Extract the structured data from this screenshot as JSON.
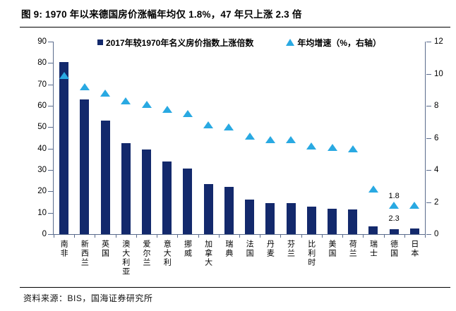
{
  "title": "图 9:  1970 年以来德国房价涨幅年均仅 1.8%，47 年只上涨 2.3 倍",
  "source": "资料来源：BIS，国海证券研究所",
  "colors": {
    "bar": "#13296C",
    "marker": "#29A9E2",
    "axis_line": "#5a6b8c",
    "text": "#000000"
  },
  "chart_data": {
    "type": "bar",
    "title": "1970 年以来德国房价涨幅年均仅 1.8%，47 年只上涨 2.3 倍",
    "categories": [
      "南非",
      "新西兰",
      "英国",
      "澳大利亚",
      "爱尔兰",
      "意大利",
      "挪威",
      "加拿大",
      "瑞典",
      "法国",
      "丹麦",
      "芬兰",
      "比利时",
      "美国",
      "荷兰",
      "瑞士",
      "德国",
      "日本"
    ],
    "series": [
      {
        "name": "2017年较1970年名义房价指数上涨倍数",
        "type": "bar",
        "axis": "left",
        "values": [
          80.5,
          63,
          53,
          42.5,
          39.5,
          34,
          30.5,
          23.5,
          22,
          16,
          14.5,
          14.5,
          13,
          12,
          11.5,
          3.5,
          2.3,
          2.5
        ]
      },
      {
        "name": "年均增速（%，右轴）",
        "type": "triangle-scatter",
        "axis": "right",
        "values": [
          9.9,
          9.2,
          8.8,
          8.3,
          8.1,
          7.8,
          7.5,
          6.8,
          6.7,
          6.1,
          5.9,
          5.9,
          5.5,
          5.4,
          5.3,
          2.8,
          1.8,
          1.8
        ]
      }
    ],
    "left_axis": {
      "min": 0,
      "max": 90,
      "ticks": [
        0,
        10,
        20,
        30,
        40,
        50,
        60,
        70,
        80,
        90
      ]
    },
    "right_axis": {
      "min": 0,
      "max": 12,
      "ticks": [
        0,
        2,
        4,
        6,
        8,
        10,
        12
      ]
    },
    "annotations": [
      {
        "text": "1.8",
        "country": "德国",
        "position": "above-triangle"
      },
      {
        "text": "2.3",
        "country": "德国",
        "position": "above-bar"
      }
    ],
    "legend_position": "top",
    "grid": false
  }
}
